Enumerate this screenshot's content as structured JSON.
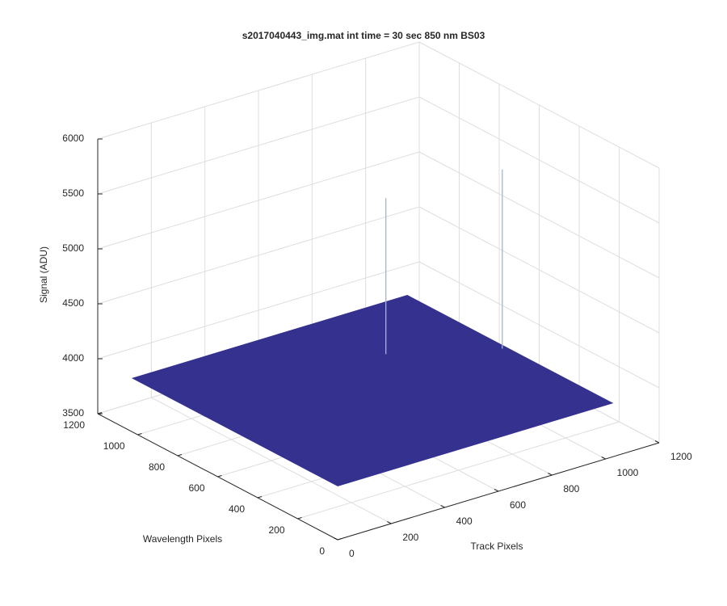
{
  "chart_data": {
    "type": "surface3d",
    "title": "s2017040443_img.mat int time = 30 sec  850 nm BS03",
    "xlabel": "Track Pixels",
    "ylabel": "Wavelength Pixels",
    "zlabel": "Signal (ADU)",
    "xlim": [
      0,
      1200
    ],
    "xticks": [
      0,
      200,
      400,
      600,
      800,
      1000,
      1200
    ],
    "ylim": [
      0,
      1200
    ],
    "yticks": [
      0,
      200,
      400,
      600,
      800,
      1000,
      1200
    ],
    "zlim": [
      3500,
      6000
    ],
    "zticks": [
      3500,
      4000,
      4500,
      5000,
      5500,
      6000
    ],
    "grid": true,
    "color": "#35318f",
    "surface": {
      "x": [
        1,
        1024
      ],
      "y": [
        1,
        1024
      ],
      "z": [
        [
          3990,
          3990
        ],
        [
          3990,
          3990
        ]
      ]
    },
    "peaks": {
      "x": [
        709,
        1010
      ],
      "y": [
        709,
        530
      ],
      "z": [
        5410,
        5620
      ],
      "color": "#9fb8c8"
    }
  }
}
